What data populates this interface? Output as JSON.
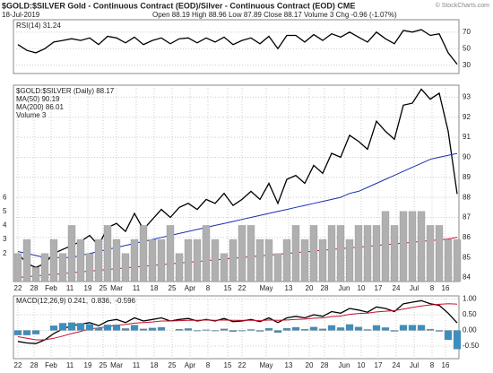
{
  "chart_data": [
    {
      "type": "line",
      "ylim": [
        20,
        85
      ],
      "yticks": [
        30,
        50,
        70
      ],
      "xlim": [
        0,
        49
      ],
      "series": [
        {
          "name": "RSI(14) 31.24",
          "color": "#000000",
          "values": [
            55,
            48,
            45,
            50,
            58,
            60,
            62,
            60,
            63,
            55,
            65,
            63,
            57,
            64,
            55,
            60,
            63,
            56,
            62,
            63,
            57,
            63,
            58,
            64,
            55,
            60,
            63,
            56,
            65,
            50,
            66,
            66,
            58,
            67,
            60,
            68,
            64,
            70,
            64,
            58,
            70,
            62,
            56,
            72,
            70,
            73,
            66,
            68,
            45,
            31.24
          ]
        }
      ]
    },
    {
      "type": "line",
      "title": "$GOLD:$SILVER Gold - Continuous Contract (EOD)/Silver - Continuous Contract (EOD) CME",
      "subtitle": "18-Jul-2019",
      "stats": "Open 88.19 High 88.96 Low 87.89 Close 88.17 Volume 3 Chg -0.96 (-1.07%)",
      "watermark": "© StockCharts.com",
      "ylim": [
        83.8,
        93.6
      ],
      "yticks": [
        84,
        85,
        86,
        87,
        88,
        89,
        90,
        91,
        92,
        93
      ],
      "y2lim": [
        0,
        14
      ],
      "y2ticks": [
        2,
        3,
        4,
        5,
        6
      ],
      "xlim": [
        0,
        49
      ],
      "xticks": [
        {
          "value": 0,
          "label": "22"
        },
        {
          "value": 1.8,
          "label": "28"
        },
        {
          "value": 3.7,
          "label": "Feb"
        },
        {
          "value": 5.8,
          "label": "11"
        },
        {
          "value": 7.8,
          "label": "19"
        },
        {
          "value": 9.5,
          "label": "25"
        },
        {
          "value": 11,
          "label": "Mar"
        },
        {
          "value": 13.2,
          "label": "11"
        },
        {
          "value": 15.2,
          "label": "18"
        },
        {
          "value": 17.2,
          "label": "25"
        },
        {
          "value": 19.2,
          "label": "Apr"
        },
        {
          "value": 21.2,
          "label": "8"
        },
        {
          "value": 23.4,
          "label": "15"
        },
        {
          "value": 25,
          "label": "22"
        },
        {
          "value": 27.7,
          "label": "May"
        },
        {
          "value": 30.2,
          "label": "13"
        },
        {
          "value": 32.5,
          "label": "20"
        },
        {
          "value": 34.2,
          "label": "28"
        },
        {
          "value": 36.4,
          "label": "Jun"
        },
        {
          "value": 38.3,
          "label": "10"
        },
        {
          "value": 40.2,
          "label": "17"
        },
        {
          "value": 42.2,
          "label": "24"
        },
        {
          "value": 44.2,
          "label": "Jul"
        },
        {
          "value": 46.2,
          "label": "8"
        },
        {
          "value": 47.7,
          "label": "16"
        }
      ],
      "series": [
        {
          "name": "$GOLD:$SILVER (Daily) 88.17",
          "color": "#000000",
          "values": [
            85.2,
            84.7,
            84.5,
            84.7,
            85.2,
            85.4,
            85.6,
            85.8,
            86.1,
            85.6,
            86.5,
            86.7,
            86.3,
            87.2,
            86.4,
            86.9,
            87.4,
            87.0,
            87.5,
            87.7,
            87.4,
            87.9,
            87.7,
            88.2,
            87.6,
            87.9,
            88.3,
            87.9,
            88.7,
            87.7,
            88.9,
            89.1,
            88.7,
            89.6,
            89.2,
            90.2,
            90.0,
            91.1,
            90.8,
            90.4,
            91.8,
            91.3,
            90.9,
            92.6,
            92.7,
            93.4,
            92.9,
            93.2,
            91.3,
            88.17
          ]
        },
        {
          "name": "MA(50) 90.19",
          "color": "#1a2fb0",
          "values": [
            85.3,
            85.2,
            85.1,
            85.0,
            85.0,
            85.0,
            85.0,
            85.1,
            85.2,
            85.3,
            85.4,
            85.5,
            85.6,
            85.7,
            85.8,
            85.9,
            86.0,
            86.1,
            86.2,
            86.3,
            86.4,
            86.5,
            86.6,
            86.7,
            86.8,
            86.9,
            87.0,
            87.1,
            87.2,
            87.3,
            87.4,
            87.5,
            87.6,
            87.7,
            87.8,
            87.9,
            88.0,
            88.2,
            88.3,
            88.5,
            88.7,
            88.9,
            89.1,
            89.3,
            89.5,
            89.7,
            89.9,
            90.0,
            90.1,
            90.19
          ]
        },
        {
          "name": "MA(200) 86.01",
          "color": "#c8102e",
          "values": [
            84.0,
            84.04,
            84.08,
            84.12,
            84.16,
            84.2,
            84.24,
            84.28,
            84.32,
            84.36,
            84.4,
            84.44,
            84.48,
            84.52,
            84.56,
            84.6,
            84.64,
            84.68,
            84.72,
            84.76,
            84.8,
            84.84,
            84.88,
            84.92,
            84.96,
            85.0,
            85.04,
            85.08,
            85.12,
            85.16,
            85.2,
            85.24,
            85.28,
            85.32,
            85.36,
            85.4,
            85.44,
            85.48,
            85.52,
            85.56,
            85.6,
            85.64,
            85.68,
            85.72,
            85.76,
            85.8,
            85.84,
            85.88,
            85.92,
            86.01
          ]
        },
        {
          "name": "Volume 3",
          "color": "#b0b0b0",
          "axis": "y2",
          "type": "bar",
          "values": [
            2,
            3,
            1,
            2,
            3,
            2,
            4,
            3,
            2,
            3,
            4,
            3,
            2,
            3,
            4,
            3,
            3,
            4,
            2,
            3,
            3,
            4,
            3,
            2,
            3,
            4,
            4,
            3,
            3,
            2,
            3,
            4,
            3,
            4,
            3,
            4,
            4,
            3,
            4,
            4,
            4,
            5,
            4,
            5,
            5,
            5,
            4,
            4,
            3,
            3
          ]
        }
      ]
    },
    {
      "type": "line",
      "ylim": [
        -0.9,
        1.1
      ],
      "yticks": [
        {
          "value": 1,
          "label": "1.00"
        },
        {
          "value": 0.5,
          "label": "0.50"
        },
        {
          "value": 0,
          "label": "0.00"
        },
        {
          "value": -0.5,
          "label": "-0.50"
        }
      ],
      "xlim": [
        0,
        49
      ],
      "legend": "inline",
      "xticks": [
        {
          "value": 0,
          "label": "22"
        },
        {
          "value": 1.8,
          "label": "28"
        },
        {
          "value": 3.7,
          "label": "Feb"
        },
        {
          "value": 5.8,
          "label": "11"
        },
        {
          "value": 7.8,
          "label": "19"
        },
        {
          "value": 9.5,
          "label": "25"
        },
        {
          "value": 11,
          "label": "Mar"
        },
        {
          "value": 13.2,
          "label": "11"
        },
        {
          "value": 15.2,
          "label": "18"
        },
        {
          "value": 17.2,
          "label": "25"
        },
        {
          "value": 19.2,
          "label": "Apr"
        },
        {
          "value": 21.2,
          "label": "8"
        },
        {
          "value": 23.4,
          "label": "15"
        },
        {
          "value": 25,
          "label": "22"
        },
        {
          "value": 27.7,
          "label": "May"
        },
        {
          "value": 30.2,
          "label": "13"
        },
        {
          "value": 32.5,
          "label": "20"
        },
        {
          "value": 34.2,
          "label": "28"
        },
        {
          "value": 36.4,
          "label": "Jun"
        },
        {
          "value": 38.3,
          "label": "10"
        },
        {
          "value": 40.2,
          "label": "17"
        },
        {
          "value": 42.2,
          "label": "24"
        },
        {
          "value": 44.2,
          "label": "Jul"
        },
        {
          "value": 46.2,
          "label": "8"
        },
        {
          "value": 47.7,
          "label": "16"
        }
      ],
      "series": [
        {
          "name": "MACD(12,26,9) 0.241,",
          "color": "#000000",
          "values": [
            -0.35,
            -0.4,
            -0.42,
            -0.3,
            -0.1,
            0.05,
            0.15,
            0.2,
            0.25,
            0.15,
            0.3,
            0.35,
            0.25,
            0.4,
            0.3,
            0.35,
            0.4,
            0.3,
            0.35,
            0.38,
            0.3,
            0.35,
            0.3,
            0.38,
            0.28,
            0.3,
            0.35,
            0.28,
            0.4,
            0.25,
            0.4,
            0.45,
            0.4,
            0.5,
            0.45,
            0.6,
            0.55,
            0.7,
            0.65,
            0.58,
            0.75,
            0.7,
            0.6,
            0.85,
            0.9,
            0.95,
            0.85,
            0.8,
            0.55,
            0.241
          ]
        },
        {
          "name": "0.836,",
          "color": "#c8102e",
          "values": [
            -0.2,
            -0.25,
            -0.3,
            -0.3,
            -0.25,
            -0.18,
            -0.1,
            -0.03,
            0.05,
            0.08,
            0.12,
            0.17,
            0.19,
            0.23,
            0.25,
            0.27,
            0.3,
            0.3,
            0.31,
            0.32,
            0.32,
            0.33,
            0.32,
            0.33,
            0.32,
            0.32,
            0.32,
            0.31,
            0.33,
            0.32,
            0.33,
            0.35,
            0.36,
            0.39,
            0.4,
            0.44,
            0.46,
            0.51,
            0.54,
            0.55,
            0.59,
            0.61,
            0.63,
            0.68,
            0.73,
            0.78,
            0.81,
            0.83,
            0.85,
            0.836
          ]
        },
        {
          "name": "-0.596",
          "color": "#3a8fc0",
          "type": "bar",
          "values": [
            -0.15,
            -0.15,
            -0.12,
            0,
            0.15,
            0.23,
            0.25,
            0.23,
            0.2,
            0.07,
            0.18,
            0.18,
            0.06,
            0.17,
            0.05,
            0.08,
            0.1,
            0,
            0.04,
            0.06,
            -0.02,
            0.02,
            -0.02,
            0.05,
            -0.04,
            -0.02,
            0.03,
            -0.03,
            0.07,
            -0.07,
            0.07,
            0.1,
            0.04,
            0.11,
            0.05,
            0.16,
            0.09,
            0.19,
            0.11,
            0.03,
            0.16,
            0.09,
            -0.03,
            0.17,
            0.17,
            0.17,
            0.04,
            -0.03,
            -0.3,
            -0.596
          ]
        }
      ]
    }
  ]
}
